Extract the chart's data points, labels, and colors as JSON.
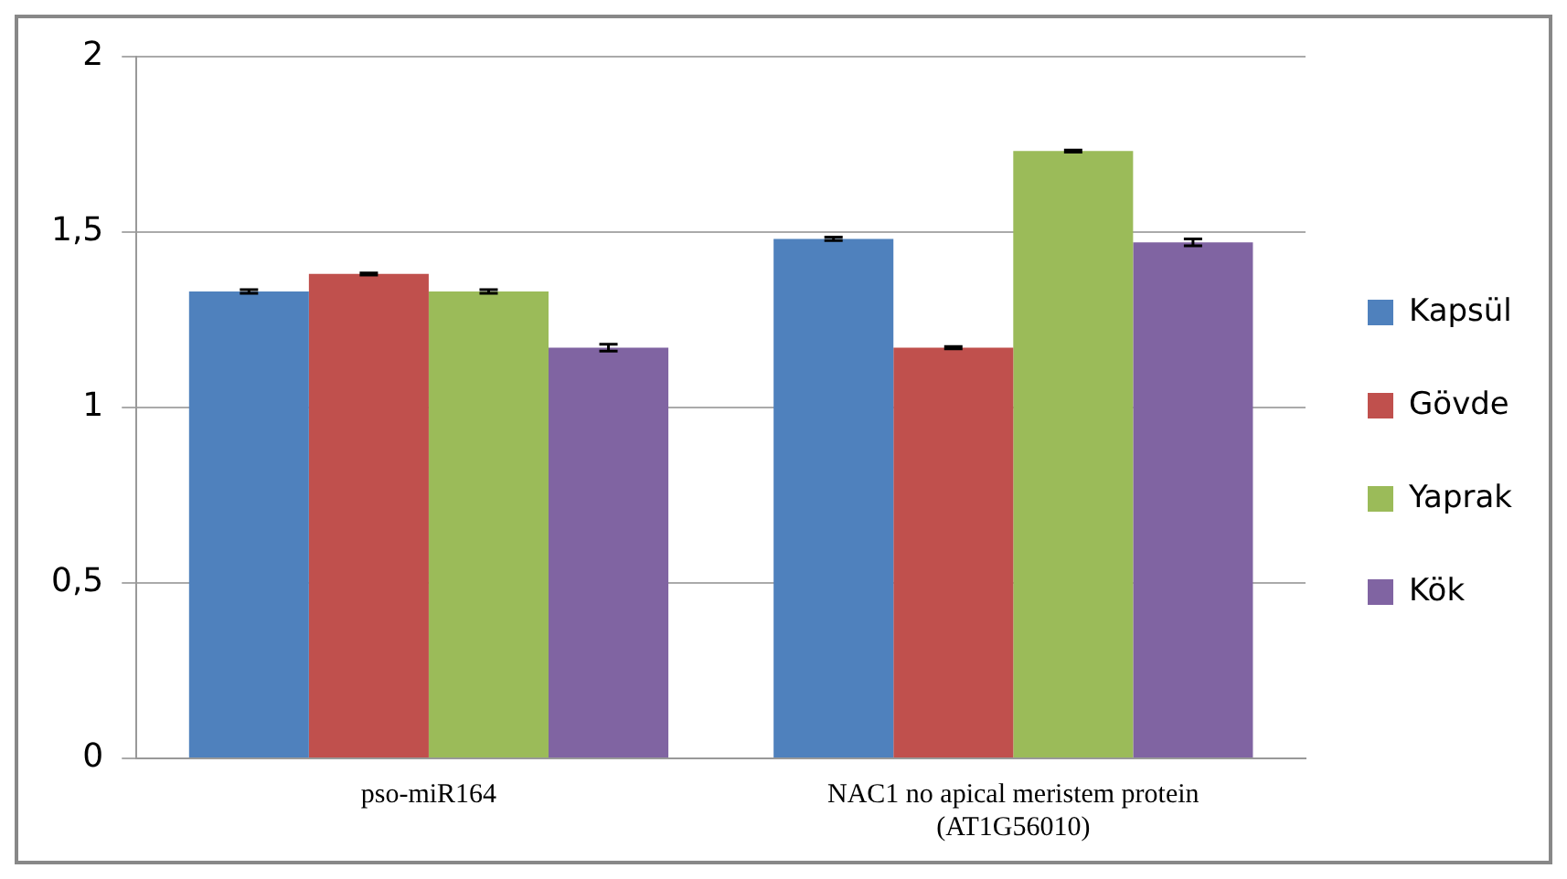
{
  "chart_data": {
    "type": "bar",
    "categories": [
      "pso-miR164",
      "NAC1 no apical meristem protein (AT1G56010)"
    ],
    "series": [
      {
        "name": "Kapsül",
        "color": "#4f81bd",
        "values": [
          1.33,
          1.48
        ],
        "errors": [
          0.005,
          0.005
        ]
      },
      {
        "name": "Gövde",
        "color": "#c0504d",
        "values": [
          1.38,
          1.17
        ],
        "errors": [
          0.003,
          0.003
        ]
      },
      {
        "name": "Yaprak",
        "color": "#9bbb59",
        "values": [
          1.33,
          1.73
        ],
        "errors": [
          0.005,
          0.003
        ]
      },
      {
        "name": "Kök",
        "color": "#8064a2",
        "values": [
          1.17,
          1.47
        ],
        "errors": [
          0.01,
          0.01
        ]
      }
    ],
    "ylim": [
      0,
      2
    ],
    "yticks": [
      0,
      {
        "value": 0.5,
        "label": "0,5"
      },
      1,
      {
        "value": 1.5,
        "label": "1,5"
      },
      2
    ],
    "grid": "y",
    "legend": "right"
  }
}
